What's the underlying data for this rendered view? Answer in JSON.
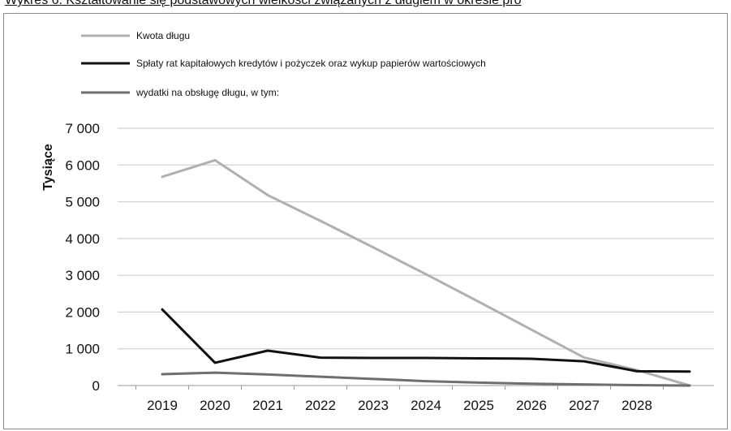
{
  "caption": "Wykres 6. Kształtowanie się podstawowych wielkości związanych z długiem w okresie pro",
  "colors": {
    "series_1": "#b0b0b0",
    "series_2": "#111111",
    "series_3": "#6e6e6e",
    "grid": "#c8c8c8",
    "frame": "#8a8a8a"
  },
  "chart_data": {
    "type": "line",
    "title": "",
    "xlabel": "",
    "ylabel": "Tysiące",
    "x": [
      "2019",
      "2020",
      "2021",
      "2022",
      "2023",
      "2024",
      "2025",
      "2026",
      "2027",
      "2028",
      ""
    ],
    "ylim": [
      0,
      7000
    ],
    "yticks": [
      0,
      1000,
      2000,
      3000,
      4000,
      5000,
      6000,
      7000
    ],
    "ytick_labels": [
      "0",
      "1 000",
      "2 000",
      "3 000",
      "4 000",
      "5 000",
      "6 000",
      "7 000"
    ],
    "grid": true,
    "legend_position": "top-left",
    "series": [
      {
        "name": "Kwota długu",
        "values": [
          5680,
          6130,
          5180,
          4480,
          3760,
          3030,
          2280,
          1520,
          760,
          420,
          0
        ]
      },
      {
        "name": "Spłaty rat kapitałowych kredytów i pożyczek oraz wykup papierów wartościowych",
        "values": [
          2070,
          620,
          950,
          760,
          750,
          750,
          740,
          730,
          660,
          390,
          380
        ]
      },
      {
        "name": " wydatki na obsługę długu, w tym:",
        "values": [
          310,
          350,
          300,
          240,
          180,
          120,
          80,
          50,
          30,
          10,
          0
        ]
      }
    ]
  }
}
